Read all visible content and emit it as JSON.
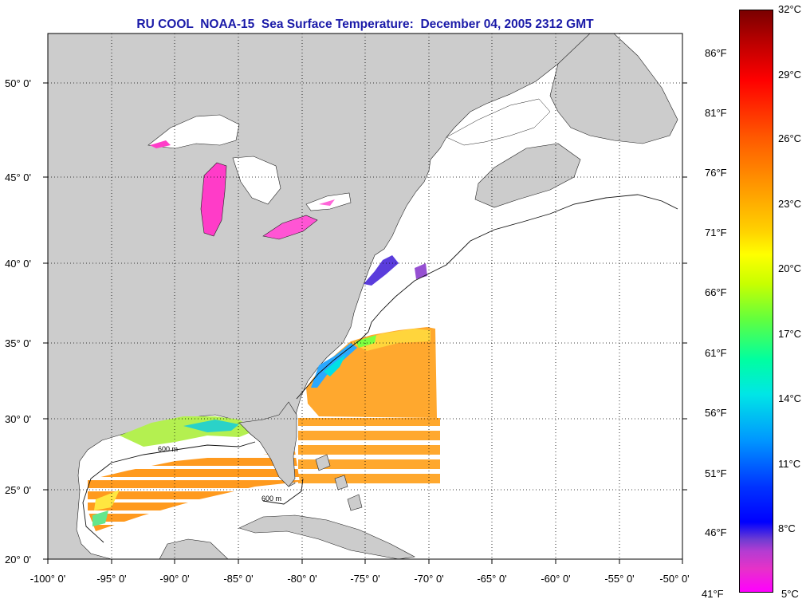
{
  "title": "RU COOL  NOAA-15  Sea Surface Temperature:  December 04, 2005 2312 GMT",
  "latitude_labels": [
    "50° 0'",
    "45° 0'",
    "40° 0'",
    "35° 0'",
    "30° 0'",
    "25° 0'",
    "20° 0'"
  ],
  "longitude_labels": [
    "-100° 0'",
    "-95° 0'",
    "-90° 0'",
    "-85° 0'",
    "-80° 0'",
    "-75° 0'",
    "-70° 0'",
    "-65° 0'",
    "-60° 0'",
    "-55° 0'",
    "-50° 0'"
  ],
  "fahrenheit_labels": [
    "86°F",
    "81°F",
    "76°F",
    "71°F",
    "66°F",
    "61°F",
    "56°F",
    "51°F",
    "46°F",
    "41°F"
  ],
  "celsius_labels": [
    "32°C",
    "29°C",
    "26°C",
    "23°C",
    "20°C",
    "17°C",
    "14°C",
    "11°C",
    "8°C",
    "5°C"
  ],
  "isobath_label": "600 m",
  "colors": {
    "land": "#cccccc",
    "ocean": "#ffffff",
    "title": "#1a1aa8",
    "grid": "#000000"
  }
}
